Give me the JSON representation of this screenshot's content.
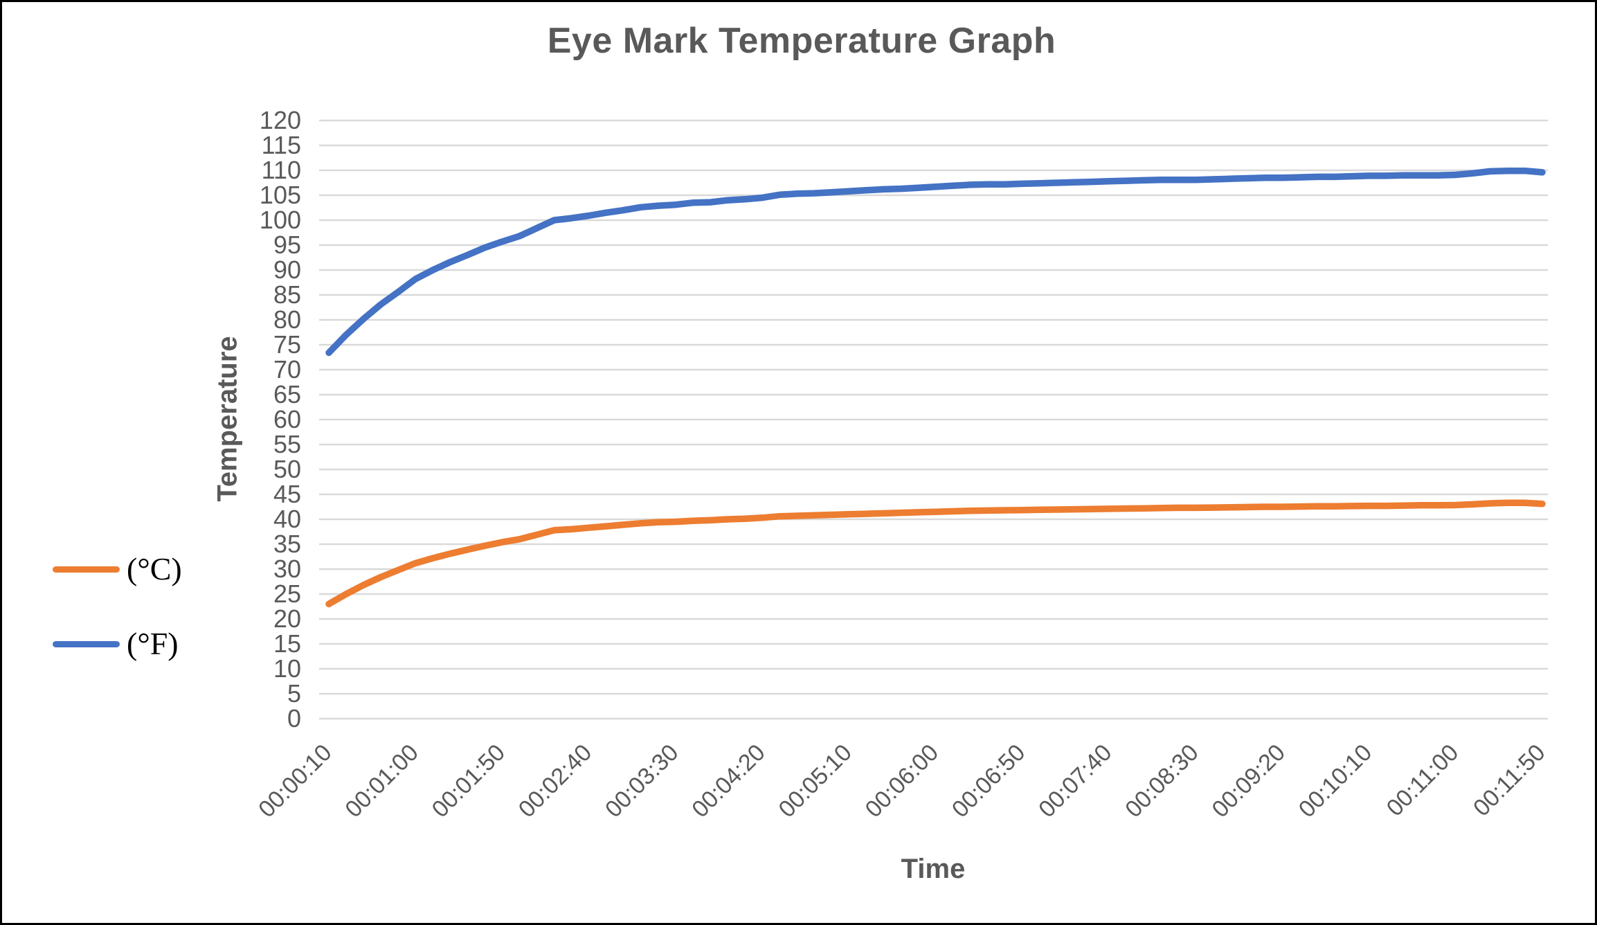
{
  "styles": {
    "background": "#ffffff",
    "frame_border_color": "#000000",
    "grid_color": "#D9D9D9",
    "text_color": "#595959",
    "legend_text_color": "#000000"
  },
  "chart_data": {
    "type": "line",
    "title": "Eye Mark Temperature Graph",
    "xlabel": "Time",
    "ylabel": "Temperature",
    "ylim": [
      0,
      120
    ],
    "ytick_step": 5,
    "grid": true,
    "legend_position": "left-middle",
    "x_tick_labels": [
      "00:00:10",
      "00:01:00",
      "00:01:50",
      "00:02:40",
      "00:03:30",
      "00:04:20",
      "00:05:10",
      "00:06:00",
      "00:06:50",
      "00:07:40",
      "00:08:30",
      "00:09:20",
      "00:10:10",
      "00:11:00",
      "00:11:50"
    ],
    "x_seconds": [
      10,
      20,
      30,
      40,
      50,
      60,
      70,
      80,
      90,
      100,
      110,
      120,
      130,
      140,
      150,
      160,
      170,
      180,
      190,
      200,
      210,
      220,
      230,
      240,
      250,
      260,
      270,
      280,
      290,
      300,
      310,
      320,
      330,
      340,
      350,
      360,
      370,
      380,
      390,
      400,
      410,
      420,
      430,
      440,
      450,
      460,
      470,
      480,
      490,
      500,
      510,
      520,
      530,
      540,
      550,
      560,
      570,
      580,
      590,
      600,
      610,
      620,
      630,
      640,
      650,
      660,
      670,
      680,
      690,
      700,
      710
    ],
    "series": [
      {
        "name": "(°C)",
        "color": "#ED7D31",
        "values": [
          23.0,
          25.0,
          26.8,
          28.4,
          29.8,
          31.2,
          32.2,
          33.1,
          33.9,
          34.7,
          35.4,
          36.0,
          36.9,
          37.8,
          38.0,
          38.3,
          38.6,
          38.9,
          39.2,
          39.4,
          39.5,
          39.7,
          39.8,
          40.0,
          40.1,
          40.3,
          40.6,
          40.7,
          40.8,
          40.9,
          41.0,
          41.1,
          41.2,
          41.3,
          41.4,
          41.5,
          41.6,
          41.7,
          41.75,
          41.8,
          41.85,
          41.9,
          41.95,
          42.0,
          42.05,
          42.1,
          42.15,
          42.2,
          42.25,
          42.3,
          42.3,
          42.35,
          42.4,
          42.45,
          42.5,
          42.5,
          42.55,
          42.6,
          42.6,
          42.65,
          42.7,
          42.7,
          42.75,
          42.8,
          42.8,
          42.85,
          43.0,
          43.2,
          43.3,
          43.3,
          43.1
        ]
      },
      {
        "name": "(°F)",
        "color": "#4472C4",
        "values": [
          73.4,
          77.0,
          80.2,
          83.1,
          85.6,
          88.2,
          90.0,
          91.6,
          93.0,
          94.5,
          95.7,
          96.8,
          98.4,
          100.0,
          100.4,
          100.9,
          101.5,
          102.0,
          102.6,
          102.9,
          103.1,
          103.5,
          103.6,
          104.0,
          104.2,
          104.5,
          105.1,
          105.3,
          105.4,
          105.6,
          105.8,
          106.0,
          106.2,
          106.3,
          106.5,
          106.7,
          106.9,
          107.1,
          107.2,
          107.2,
          107.3,
          107.4,
          107.5,
          107.6,
          107.7,
          107.8,
          107.9,
          108.0,
          108.1,
          108.1,
          108.1,
          108.2,
          108.3,
          108.4,
          108.5,
          108.5,
          108.6,
          108.7,
          108.7,
          108.8,
          108.9,
          108.9,
          109.0,
          109.0,
          109.0,
          109.1,
          109.4,
          109.8,
          109.9,
          109.9,
          109.6
        ]
      }
    ]
  }
}
